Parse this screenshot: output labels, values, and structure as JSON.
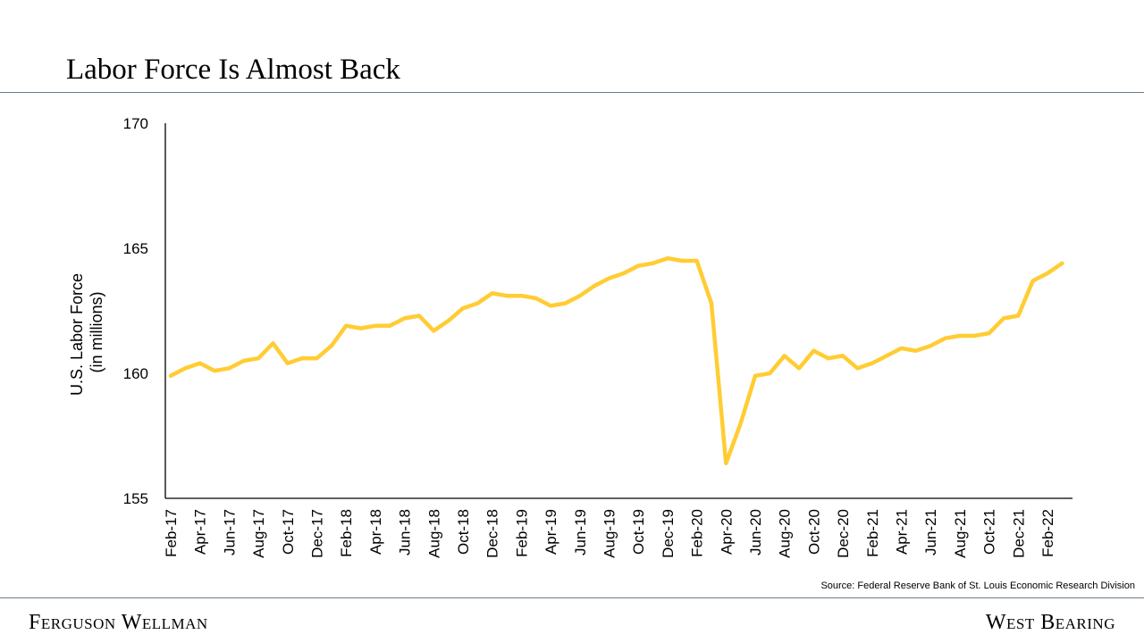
{
  "header": {
    "title": "Labor Force Is Almost Back"
  },
  "footer": {
    "source": "Source: Federal Reserve Bank of St. Louis Economic Research Division",
    "left_brand": "Ferguson Wellman",
    "right_brand": "West Bearing"
  },
  "colors": {
    "line": "#FFCC33",
    "rule": "#6E7B88",
    "axis": "#000000"
  },
  "chart_data": {
    "type": "line",
    "title": "Labor Force Is Almost Back",
    "ylabel_lines": [
      "U.S. Labor Force",
      "(in millions)"
    ],
    "xlabel": "",
    "ylim": [
      155,
      170
    ],
    "yticks": [
      "155",
      "160",
      "165",
      "170"
    ],
    "grid": false,
    "legend": "none",
    "x": [
      "Feb-17",
      "Mar-17",
      "Apr-17",
      "May-17",
      "Jun-17",
      "Jul-17",
      "Aug-17",
      "Sep-17",
      "Oct-17",
      "Nov-17",
      "Dec-17",
      "Jan-18",
      "Feb-18",
      "Mar-18",
      "Apr-18",
      "May-18",
      "Jun-18",
      "Jul-18",
      "Aug-18",
      "Sep-18",
      "Oct-18",
      "Nov-18",
      "Dec-18",
      "Jan-19",
      "Feb-19",
      "Mar-19",
      "Apr-19",
      "May-19",
      "Jun-19",
      "Jul-19",
      "Aug-19",
      "Sep-19",
      "Oct-19",
      "Nov-19",
      "Dec-19",
      "Jan-20",
      "Feb-20",
      "Mar-20",
      "Apr-20",
      "May-20",
      "Jun-20",
      "Jul-20",
      "Aug-20",
      "Sep-20",
      "Oct-20",
      "Nov-20",
      "Dec-20",
      "Jan-21",
      "Feb-21",
      "Mar-21",
      "Apr-21",
      "May-21",
      "Jun-21",
      "Jul-21",
      "Aug-21",
      "Sep-21",
      "Oct-21",
      "Nov-21",
      "Dec-21",
      "Jan-22",
      "Feb-22",
      "Mar-22"
    ],
    "xtick_labels": [
      "Feb-17",
      "Apr-17",
      "Jun-17",
      "Aug-17",
      "Oct-17",
      "Dec-17",
      "Feb-18",
      "Apr-18",
      "Jun-18",
      "Aug-18",
      "Oct-18",
      "Dec-18",
      "Feb-19",
      "Apr-19",
      "Jun-19",
      "Aug-19",
      "Oct-19",
      "Dec-19",
      "Feb-20",
      "Apr-20",
      "Jun-20",
      "Aug-20",
      "Oct-20",
      "Dec-20",
      "Feb-21",
      "Apr-21",
      "Jun-21",
      "Aug-21",
      "Oct-21",
      "Dec-21",
      "Feb-22"
    ],
    "series": [
      {
        "values": [
          159.9,
          160.2,
          160.4,
          160.1,
          160.2,
          160.5,
          160.6,
          161.2,
          160.4,
          160.6,
          160.6,
          161.1,
          161.9,
          161.8,
          161.9,
          161.9,
          162.2,
          162.3,
          161.7,
          162.1,
          162.6,
          162.8,
          163.2,
          163.1,
          163.1,
          163.0,
          162.7,
          162.8,
          163.1,
          163.5,
          163.8,
          164.0,
          164.3,
          164.4,
          164.6,
          164.5,
          164.5,
          162.8,
          156.4,
          158.0,
          159.9,
          160.0,
          160.7,
          160.2,
          160.9,
          160.6,
          160.7,
          160.2,
          160.4,
          160.7,
          161.0,
          160.9,
          161.1,
          161.4,
          161.5,
          161.5,
          161.6,
          162.2,
          162.3,
          163.7,
          164.0,
          164.4
        ]
      }
    ]
  }
}
